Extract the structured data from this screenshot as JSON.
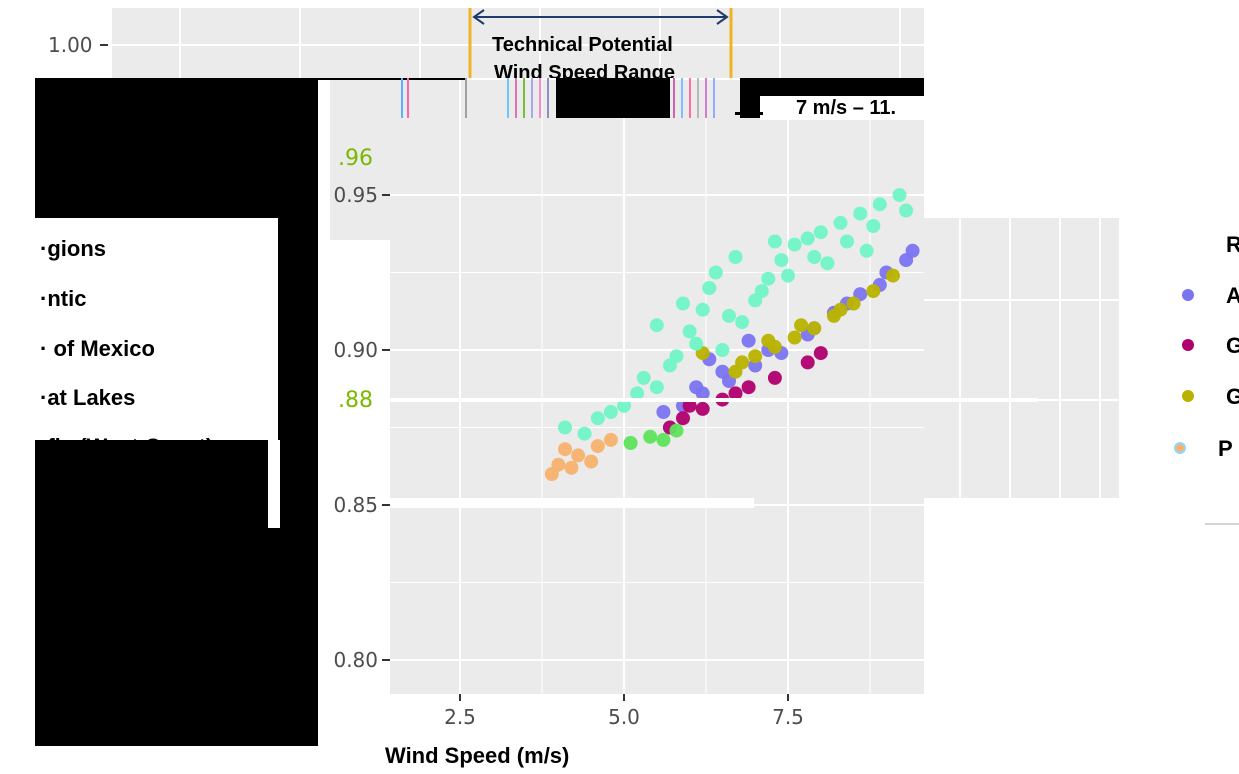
{
  "chart_data": {
    "type": "scatter",
    "xlabel": "Wind Speed (m/s)",
    "ylabel": "",
    "xlim": [
      1.5,
      9.4
    ],
    "ylim": [
      0.787,
      0.955
    ],
    "x_ticks": [
      "2.5",
      "5.0",
      "7.5"
    ],
    "y_ticks": [
      "0.80",
      "0.85",
      "0.90",
      "0.95"
    ],
    "top_tick": "1.00",
    "highlight_labels": [
      ".96",
      ".88"
    ],
    "annotation": {
      "title_line1": "Technical Potential",
      "title_line2": "Wind Speed Range",
      "range_text": "7 m/s – 11."
    },
    "legend": {
      "title": "Regions",
      "title_visible": "·gions",
      "items_visible_left": [
        "·ntic",
        "· of Mexico",
        "·at Lakes",
        "·fic (West Coast)"
      ],
      "items_visible_right": [
        "A",
        "G",
        "G",
        "P"
      ]
    },
    "series": [
      {
        "name": "Atlantic",
        "color": "#7b74f0",
        "points": [
          [
            5.6,
            0.88
          ],
          [
            5.9,
            0.882
          ],
          [
            6.2,
            0.886
          ],
          [
            6.6,
            0.89
          ],
          [
            7.0,
            0.895
          ],
          [
            7.4,
            0.899
          ],
          [
            7.8,
            0.905
          ],
          [
            8.2,
            0.912
          ],
          [
            8.6,
            0.918
          ],
          [
            9.0,
            0.925
          ],
          [
            9.4,
            0.932
          ],
          [
            6.1,
            0.888
          ],
          [
            6.5,
            0.893
          ],
          [
            7.2,
            0.9
          ],
          [
            7.9,
            0.907
          ],
          [
            8.4,
            0.915
          ],
          [
            8.9,
            0.921
          ],
          [
            9.3,
            0.929
          ],
          [
            6.3,
            0.897
          ],
          [
            6.9,
            0.903
          ]
        ]
      },
      {
        "name": "Gulf of Mexico",
        "color": "#b0006e",
        "points": [
          [
            5.7,
            0.875
          ],
          [
            5.9,
            0.878
          ],
          [
            6.2,
            0.881
          ],
          [
            6.5,
            0.884
          ],
          [
            6.9,
            0.888
          ],
          [
            7.3,
            0.891
          ],
          [
            7.8,
            0.896
          ],
          [
            8.0,
            0.899
          ],
          [
            6.0,
            0.882
          ],
          [
            6.7,
            0.886
          ]
        ]
      },
      {
        "name": "Great Lakes",
        "color": "#b9b300",
        "points": [
          [
            6.8,
            0.896
          ],
          [
            7.0,
            0.898
          ],
          [
            7.3,
            0.901
          ],
          [
            7.6,
            0.904
          ],
          [
            7.9,
            0.907
          ],
          [
            8.2,
            0.911
          ],
          [
            8.5,
            0.915
          ],
          [
            8.8,
            0.919
          ],
          [
            9.1,
            0.924
          ],
          [
            7.2,
            0.903
          ],
          [
            7.7,
            0.908
          ],
          [
            8.3,
            0.913
          ],
          [
            6.2,
            0.899
          ],
          [
            6.7,
            0.893
          ]
        ]
      },
      {
        "name": "Pacific (West Coast)",
        "color": "#f7b26f",
        "points": [
          [
            3.9,
            0.86
          ],
          [
            4.0,
            0.863
          ],
          [
            4.2,
            0.862
          ],
          [
            4.3,
            0.866
          ],
          [
            4.5,
            0.864
          ],
          [
            4.1,
            0.868
          ],
          [
            4.6,
            0.869
          ],
          [
            4.8,
            0.871
          ]
        ]
      },
      {
        "name": "",
        "color": "#72f5c6",
        "points": [
          [
            4.1,
            0.875
          ],
          [
            4.6,
            0.878
          ],
          [
            5.0,
            0.882
          ],
          [
            5.5,
            0.888
          ],
          [
            5.8,
            0.898
          ],
          [
            6.0,
            0.906
          ],
          [
            6.2,
            0.913
          ],
          [
            6.3,
            0.92
          ],
          [
            6.5,
            0.9
          ],
          [
            6.8,
            0.909
          ],
          [
            7.0,
            0.916
          ],
          [
            7.2,
            0.923
          ],
          [
            7.4,
            0.929
          ],
          [
            7.6,
            0.934
          ],
          [
            7.8,
            0.936
          ],
          [
            8.0,
            0.938
          ],
          [
            8.3,
            0.941
          ],
          [
            8.6,
            0.944
          ],
          [
            8.9,
            0.947
          ],
          [
            9.2,
            0.95
          ],
          [
            5.3,
            0.891
          ],
          [
            5.7,
            0.895
          ],
          [
            6.1,
            0.902
          ],
          [
            6.6,
            0.911
          ],
          [
            7.1,
            0.919
          ],
          [
            7.5,
            0.924
          ],
          [
            7.9,
            0.93
          ],
          [
            8.4,
            0.935
          ],
          [
            8.8,
            0.94
          ],
          [
            9.3,
            0.945
          ],
          [
            4.8,
            0.88
          ],
          [
            5.2,
            0.886
          ],
          [
            6.4,
            0.925
          ],
          [
            6.7,
            0.93
          ],
          [
            7.3,
            0.935
          ],
          [
            5.5,
            0.908
          ],
          [
            5.9,
            0.915
          ],
          [
            4.4,
            0.873
          ],
          [
            8.1,
            0.928
          ],
          [
            8.7,
            0.932
          ]
        ]
      },
      {
        "name": "",
        "color": "#5ee45c",
        "points": [
          [
            5.1,
            0.87
          ],
          [
            5.4,
            0.872
          ],
          [
            5.6,
            0.871
          ],
          [
            5.8,
            0.874
          ]
        ]
      }
    ]
  }
}
